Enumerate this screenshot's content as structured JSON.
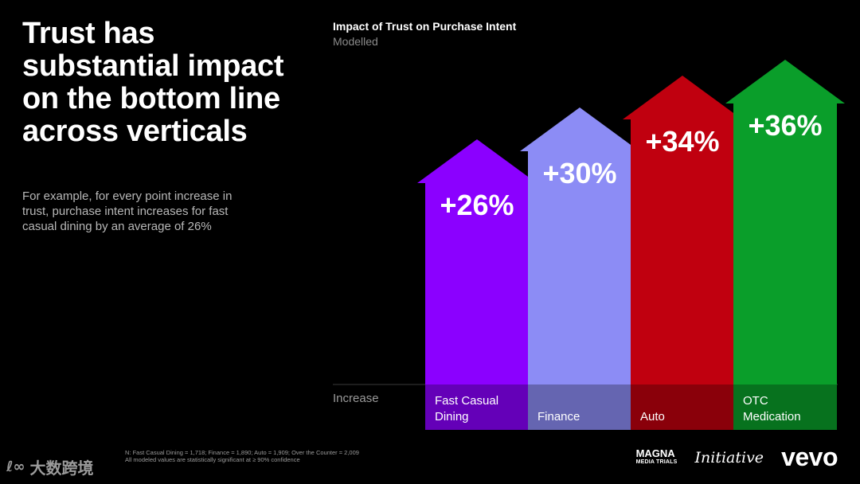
{
  "headline": "Trust has substantial impact on the bottom line across verticals",
  "subtext": "For example, for every point increase in trust, purchase intent increases for fast casual dining by an average of 26%",
  "footnote": {
    "line1": "N: Fast Casual Dining = 1,718; Finance = 1,890; Auto = 1,909; Over the Counter = 2,009",
    "line2": "All modeled values are statistically significant at ≥ 90% confidence"
  },
  "logos": {
    "magna_main": "MAGNA",
    "magna_sub": "MEDIA TRIALS",
    "initiative": "Initiative",
    "vevo": "vevo"
  },
  "watermark": {
    "text": "大数跨境"
  },
  "chart_data": {
    "type": "bar",
    "title": "Impact of Trust on Purchase Intent",
    "subtitle": "Modelled",
    "row_label": "Increase",
    "categories": [
      "Fast Casual\nDining",
      "Finance",
      "Auto",
      "OTC\nMedication"
    ],
    "values": [
      26,
      30,
      34,
      36
    ],
    "value_labels": [
      "+26%",
      "+30%",
      "+34%",
      "+36%"
    ],
    "colors": [
      "#8b00ff",
      "#8c8cf5",
      "#c0000f",
      "#0a9e2a"
    ],
    "style": "upward-arrows"
  }
}
